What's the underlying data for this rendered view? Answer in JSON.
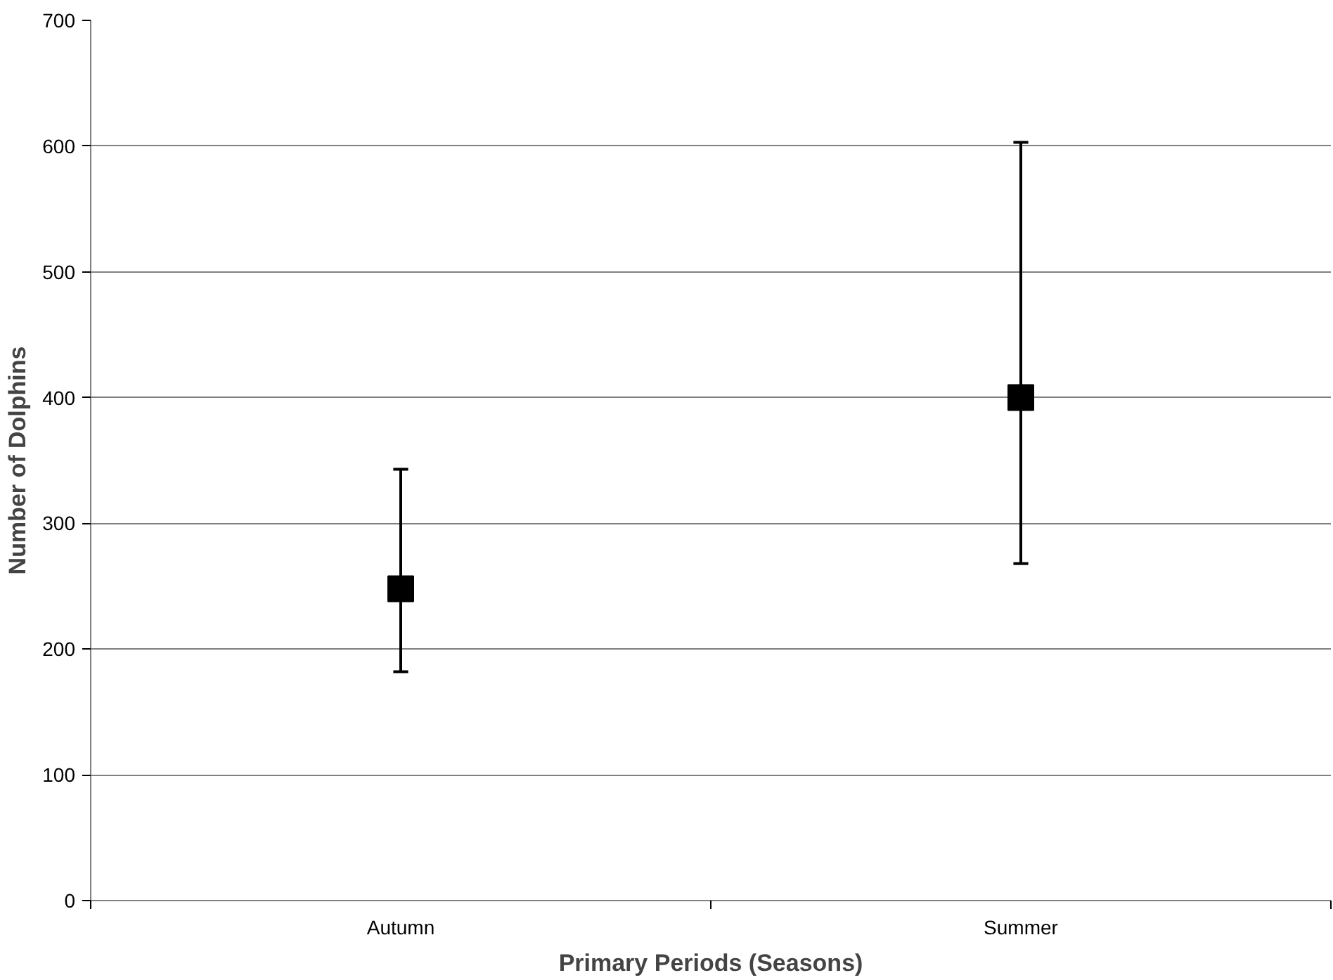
{
  "chart_data": {
    "type": "scatter",
    "xlabel": "Primary Periods (Seasons)",
    "ylabel": "Number of Dolphins",
    "categories": [
      "Autumn",
      "Summer"
    ],
    "series": [
      {
        "color": "#000000",
        "values": [
          248,
          400
        ],
        "errors": [
          [
            182,
            343
          ],
          [
            268,
            603
          ]
        ]
      }
    ],
    "ylim": [
      0,
      700
    ],
    "yticks": [
      0,
      100,
      200,
      300,
      400,
      500,
      600,
      700
    ],
    "grid": "y",
    "marker": "square"
  }
}
